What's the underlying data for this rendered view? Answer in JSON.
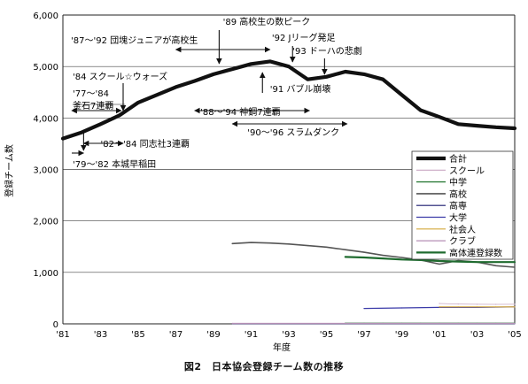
{
  "caption": "図2　日本協会登録チーム数の推移",
  "chart_data": {
    "type": "line",
    "ylabel": "登録チーム数",
    "xlabel": "年度",
    "ylim": [
      0,
      6000
    ],
    "xlim": [
      1981,
      2005
    ],
    "grid": "horizontal",
    "legend_position": "right-center",
    "y_ticks": [
      0,
      1000,
      2000,
      3000,
      4000,
      5000,
      6000
    ],
    "y_tick_labels": [
      "0",
      "1,000",
      "2,000",
      "3,000",
      "4,000",
      "5,000",
      "6,000"
    ],
    "x_ticks": [
      1981,
      1983,
      1985,
      1987,
      1989,
      1991,
      1993,
      1995,
      1997,
      1999,
      2001,
      2003,
      2005
    ],
    "x_tick_labels": [
      "'81",
      "'83",
      "'85",
      "'87",
      "'89",
      "'91",
      "'93",
      "'95",
      "'97",
      "'99",
      "'01",
      "'03",
      "'05"
    ],
    "series": [
      {
        "name": "合計",
        "color": "#111111",
        "width": 4.2,
        "x": [
          1981,
          1982,
          1983,
          1984,
          1985,
          1986,
          1987,
          1988,
          1989,
          1990,
          1991,
          1992,
          1993,
          1994,
          1995,
          1996,
          1997,
          1998,
          1999,
          2000,
          2001,
          2002,
          2003,
          2004,
          2005
        ],
        "values": [
          3600,
          3720,
          3880,
          4050,
          4300,
          4450,
          4600,
          4720,
          4850,
          4950,
          5050,
          5100,
          5000,
          4750,
          4800,
          4900,
          4850,
          4750,
          4450,
          4150,
          4020,
          3880,
          3850,
          3820,
          3800
        ]
      },
      {
        "name": "スクール",
        "color": "#c9a7c2",
        "width": 0.8,
        "x": [
          2001,
          2002,
          2003,
          2004,
          2005
        ],
        "values": [
          395,
          385,
          380,
          378,
          380
        ]
      },
      {
        "name": "中学",
        "color": "#2e7d3a",
        "width": 1.4,
        "x": [
          1996,
          1997,
          1998,
          1999,
          2000,
          2001,
          2002,
          2003,
          2004,
          2005
        ],
        "values": [
          12,
          12,
          12,
          12,
          12,
          12,
          12,
          12,
          12,
          12
        ]
      },
      {
        "name": "高校",
        "color": "#555555",
        "width": 1.6,
        "x": [
          1990,
          1991,
          1992,
          1993,
          1994,
          1995,
          1996,
          1997,
          1998,
          1999,
          2000,
          2001,
          2002,
          2003,
          2004,
          2005
        ],
        "values": [
          1560,
          1580,
          1570,
          1550,
          1520,
          1490,
          1440,
          1390,
          1330,
          1290,
          1240,
          1160,
          1230,
          1200,
          1130,
          1100
        ]
      },
      {
        "name": "高専",
        "color": "#1a1a6e",
        "width": 1.2,
        "x": [
          1990,
          2005
        ],
        "values": [
          4,
          4
        ]
      },
      {
        "name": "大学",
        "color": "#3a3aa8",
        "width": 1.2,
        "x": [
          1997,
          1999,
          2001,
          2003,
          2005
        ],
        "values": [
          300,
          310,
          320,
          320,
          330
        ]
      },
      {
        "name": "社会人",
        "color": "#d4a73a",
        "width": 1.2,
        "x": [
          2001,
          2002,
          2003,
          2004,
          2005
        ],
        "values": [
          330,
          330,
          330,
          330,
          330
        ]
      },
      {
        "name": "クラブ",
        "color": "#b58fb5",
        "width": 1.2,
        "x": [
          1990,
          2005
        ],
        "values": [
          8,
          8
        ]
      },
      {
        "name": "高体連登録数",
        "color": "#1f6b2f",
        "width": 2.2,
        "x": [
          1996,
          1997,
          1998,
          1999,
          2000,
          2001,
          2002,
          2003,
          2004,
          2005
        ],
        "values": [
          1300,
          1290,
          1270,
          1250,
          1240,
          1220,
          1210,
          1200,
          1200,
          1200
        ]
      }
    ],
    "annotations": [
      {
        "text": "'87～'92 団塊ジュニアが高校生"
      },
      {
        "text": "'89 高校生の数ピーク"
      },
      {
        "text": "'92 Jリーグ発足"
      },
      {
        "text": "'93 ドーハの悲劇"
      },
      {
        "text": "'84 スクール☆ウォーズ"
      },
      {
        "text": "'77～'84"
      },
      {
        "text": "釜石7連覇"
      },
      {
        "text": "'91 バブル崩壊"
      },
      {
        "text": "'88～'94 神鋼7連覇"
      },
      {
        "text": "'90～'96 スラムダンク"
      },
      {
        "text": "'82～'84 同志社3連覇"
      },
      {
        "text": "'79～'82 本城早稲田"
      }
    ]
  }
}
